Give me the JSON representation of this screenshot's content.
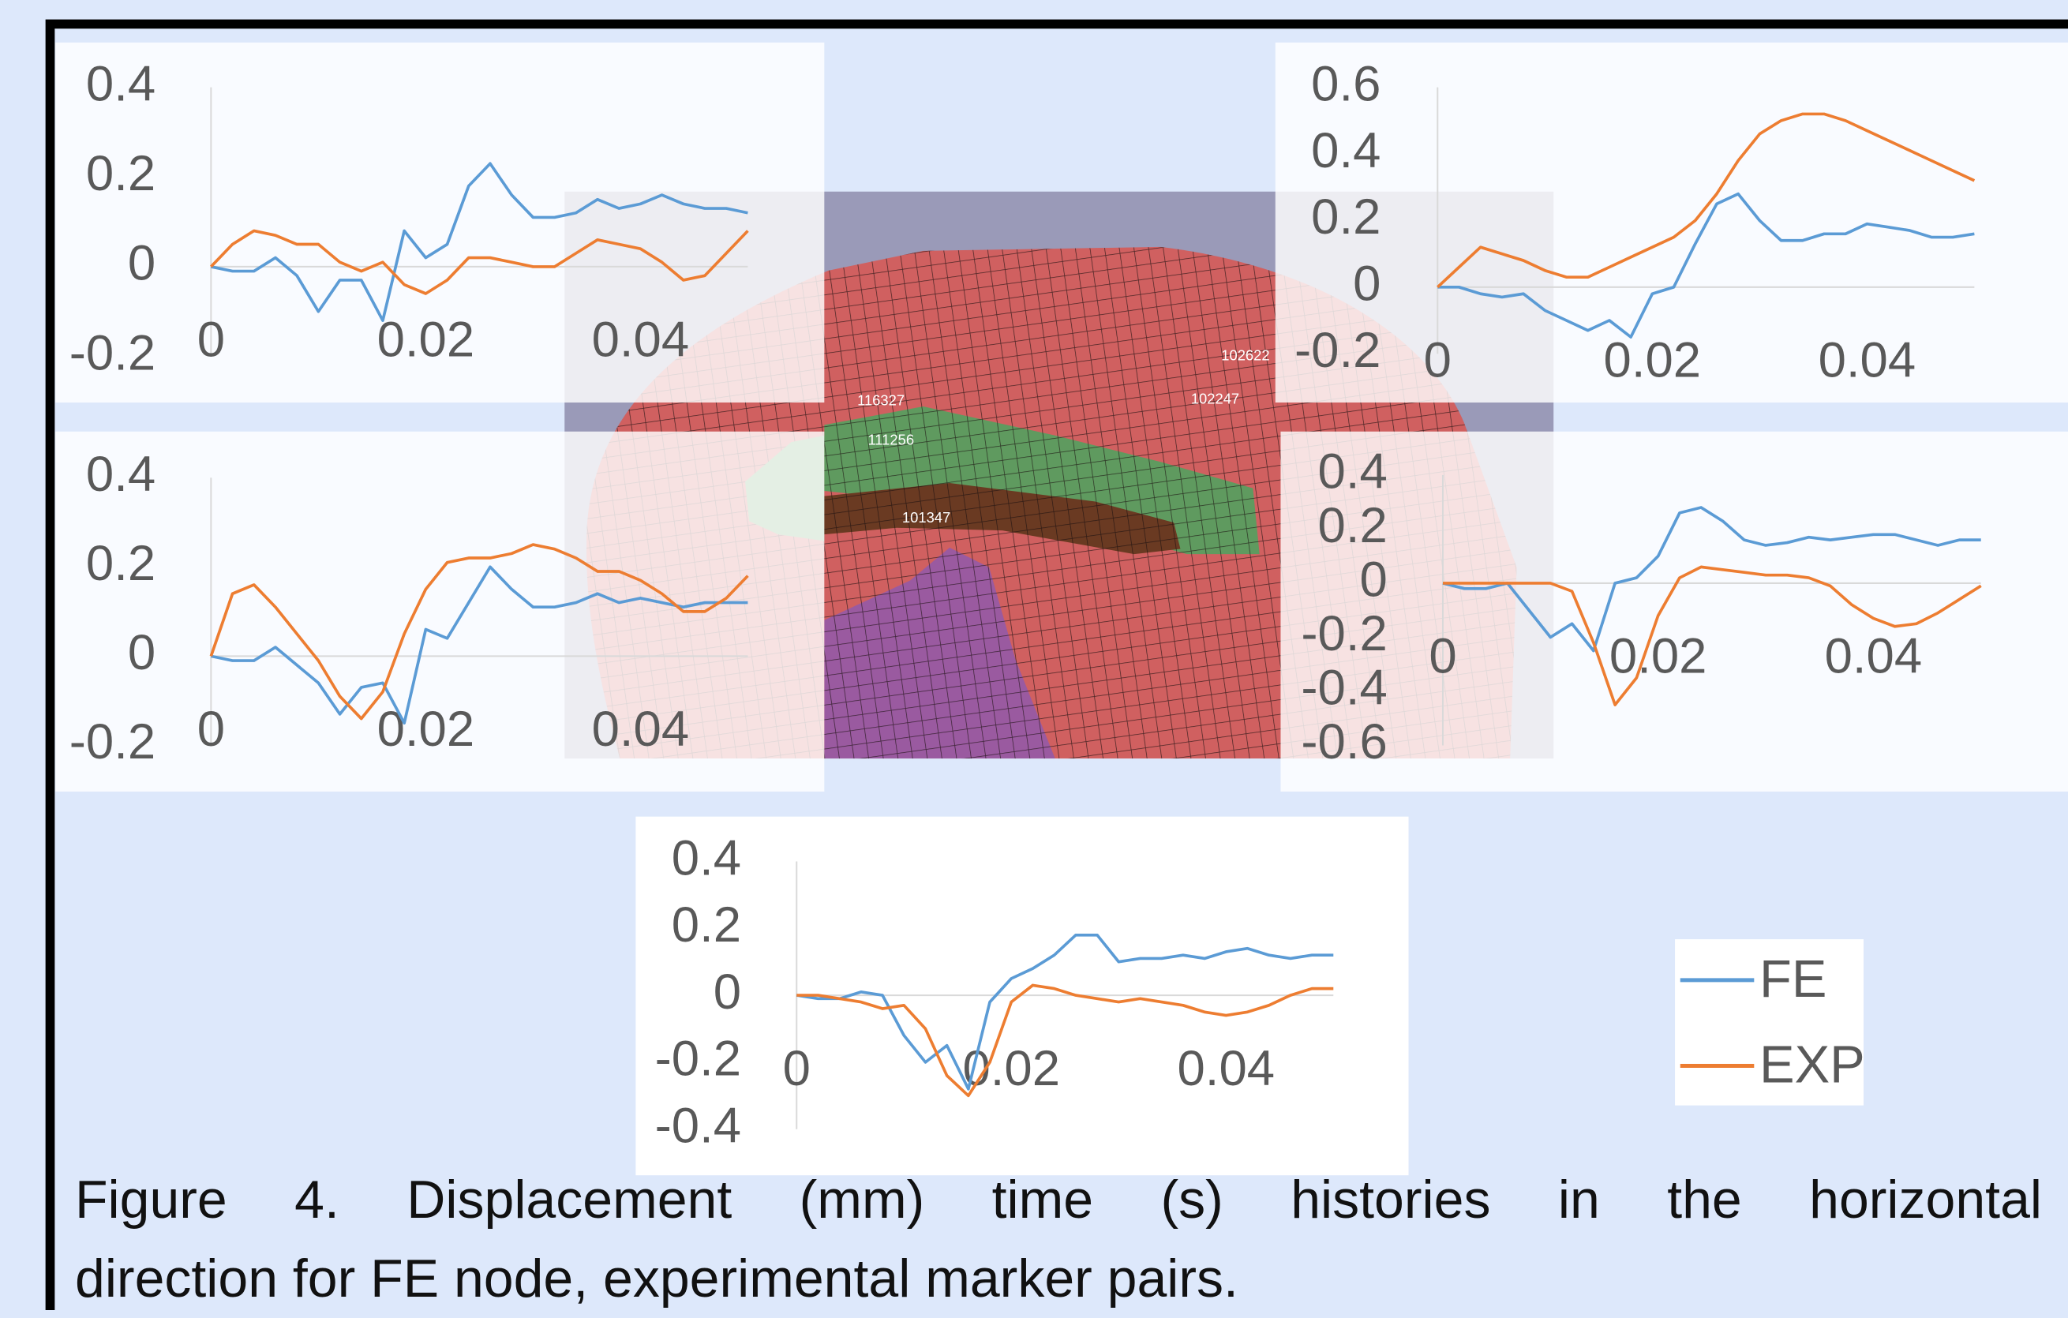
{
  "chart_data": [
    {
      "type": "line",
      "x": [
        0,
        0.002,
        0.004,
        0.006,
        0.008,
        0.01,
        0.012,
        0.014,
        0.016,
        0.018,
        0.02,
        0.022,
        0.024,
        0.026,
        0.028,
        0.03,
        0.032,
        0.034,
        0.036,
        0.038,
        0.04,
        0.042,
        0.044,
        0.046,
        0.048,
        0.05
      ],
      "series": [
        {
          "name": "FE",
          "color": "#5b9bd5",
          "values": [
            0,
            -0.01,
            -0.01,
            0.02,
            -0.02,
            -0.1,
            -0.03,
            -0.03,
            -0.12,
            0.08,
            0.02,
            0.05,
            0.18,
            0.23,
            0.16,
            0.11,
            0.11,
            0.12,
            0.15,
            0.13,
            0.14,
            0.16,
            0.14,
            0.13,
            0.13,
            0.12
          ]
        },
        {
          "name": "EXP",
          "color": "#ed7d31",
          "values": [
            0,
            0.05,
            0.08,
            0.07,
            0.05,
            0.05,
            0.01,
            -0.01,
            0.01,
            -0.04,
            -0.06,
            -0.03,
            0.02,
            0.02,
            0.01,
            0,
            0,
            0.03,
            0.06,
            0.05,
            0.04,
            0.01,
            -0.03,
            -0.02,
            0.03,
            0.08
          ]
        }
      ],
      "xlim": [
        0,
        0.05
      ],
      "xticks": [
        0,
        0.02,
        0.04
      ],
      "ylim": [
        -0.2,
        0.4
      ],
      "yticks": [
        -0.2,
        0,
        0.2,
        0.4
      ],
      "grid": false
    },
    {
      "type": "line",
      "x": [
        0,
        0.002,
        0.004,
        0.006,
        0.008,
        0.01,
        0.012,
        0.014,
        0.016,
        0.018,
        0.02,
        0.022,
        0.024,
        0.026,
        0.028,
        0.03,
        0.032,
        0.034,
        0.036,
        0.038,
        0.04,
        0.042,
        0.044,
        0.046,
        0.048,
        0.05
      ],
      "series": [
        {
          "name": "FE",
          "color": "#5b9bd5",
          "values": [
            0,
            0,
            -0.02,
            -0.03,
            -0.02,
            -0.07,
            -0.1,
            -0.13,
            -0.1,
            -0.15,
            -0.02,
            0,
            0.13,
            0.25,
            0.28,
            0.2,
            0.14,
            0.14,
            0.16,
            0.16,
            0.19,
            0.18,
            0.17,
            0.15,
            0.15,
            0.16
          ]
        },
        {
          "name": "EXP",
          "color": "#ed7d31",
          "values": [
            0,
            0.06,
            0.12,
            0.1,
            0.08,
            0.05,
            0.03,
            0.03,
            0.06,
            0.09,
            0.12,
            0.15,
            0.2,
            0.28,
            0.38,
            0.46,
            0.5,
            0.52,
            0.52,
            0.5,
            0.47,
            0.44,
            0.41,
            0.38,
            0.35,
            0.32
          ]
        }
      ],
      "xlim": [
        0,
        0.05
      ],
      "xticks": [
        0,
        0.02,
        0.04
      ],
      "ylim": [
        -0.2,
        0.6
      ],
      "yticks": [
        -0.2,
        0,
        0.2,
        0.4,
        0.6
      ],
      "grid": false
    },
    {
      "type": "line",
      "x": [
        0,
        0.002,
        0.004,
        0.006,
        0.008,
        0.01,
        0.012,
        0.014,
        0.016,
        0.018,
        0.02,
        0.022,
        0.024,
        0.026,
        0.028,
        0.03,
        0.032,
        0.034,
        0.036,
        0.038,
        0.04,
        0.042,
        0.044,
        0.046,
        0.048,
        0.05
      ],
      "series": [
        {
          "name": "FE",
          "color": "#5b9bd5",
          "values": [
            0,
            -0.01,
            -0.01,
            0.02,
            -0.02,
            -0.06,
            -0.13,
            -0.07,
            -0.06,
            -0.15,
            0.06,
            0.04,
            0.12,
            0.2,
            0.15,
            0.11,
            0.11,
            0.12,
            0.14,
            0.12,
            0.13,
            0.12,
            0.11,
            0.12,
            0.12,
            0.12
          ]
        },
        {
          "name": "EXP",
          "color": "#ed7d31",
          "values": [
            0,
            0.14,
            0.16,
            0.11,
            0.05,
            -0.01,
            -0.09,
            -0.14,
            -0.08,
            0.05,
            0.15,
            0.21,
            0.22,
            0.22,
            0.23,
            0.25,
            0.24,
            0.22,
            0.19,
            0.19,
            0.17,
            0.14,
            0.1,
            0.1,
            0.13,
            0.18
          ]
        }
      ],
      "xlim": [
        0,
        0.05
      ],
      "xticks": [
        0,
        0.02,
        0.04
      ],
      "ylim": [
        -0.2,
        0.4
      ],
      "yticks": [
        -0.2,
        0,
        0.2,
        0.4
      ],
      "grid": false
    },
    {
      "type": "line",
      "x": [
        0,
        0.002,
        0.004,
        0.006,
        0.008,
        0.01,
        0.012,
        0.014,
        0.016,
        0.018,
        0.02,
        0.022,
        0.024,
        0.026,
        0.028,
        0.03,
        0.032,
        0.034,
        0.036,
        0.038,
        0.04,
        0.042,
        0.044,
        0.046,
        0.048,
        0.05
      ],
      "series": [
        {
          "name": "FE",
          "color": "#5b9bd5",
          "values": [
            0,
            -0.02,
            -0.02,
            0,
            -0.1,
            -0.2,
            -0.15,
            -0.25,
            0,
            0.02,
            0.1,
            0.26,
            0.28,
            0.23,
            0.16,
            0.14,
            0.15,
            0.17,
            0.16,
            0.17,
            0.18,
            0.18,
            0.16,
            0.14,
            0.16,
            0.16
          ]
        },
        {
          "name": "EXP",
          "color": "#ed7d31",
          "values": [
            0,
            0,
            0,
            0,
            0,
            0,
            -0.03,
            -0.22,
            -0.45,
            -0.35,
            -0.12,
            0.02,
            0.06,
            0.05,
            0.04,
            0.03,
            0.03,
            0.02,
            -0.01,
            -0.08,
            -0.13,
            -0.16,
            -0.15,
            -0.11,
            -0.06,
            -0.01
          ]
        }
      ],
      "xlim": [
        0,
        0.05
      ],
      "xticks": [
        0,
        0.02,
        0.04
      ],
      "ylim": [
        -0.6,
        0.4
      ],
      "yticks": [
        -0.6,
        -0.4,
        -0.2,
        0,
        0.2,
        0.4
      ],
      "grid": false
    },
    {
      "type": "line",
      "x": [
        0,
        0.002,
        0.004,
        0.006,
        0.008,
        0.01,
        0.012,
        0.014,
        0.016,
        0.018,
        0.02,
        0.022,
        0.024,
        0.026,
        0.028,
        0.03,
        0.032,
        0.034,
        0.036,
        0.038,
        0.04,
        0.042,
        0.044,
        0.046,
        0.048,
        0.05
      ],
      "series": [
        {
          "name": "FE",
          "color": "#5b9bd5",
          "values": [
            0,
            -0.01,
            -0.01,
            0.01,
            0,
            -0.12,
            -0.2,
            -0.15,
            -0.28,
            -0.02,
            0.05,
            0.08,
            0.12,
            0.18,
            0.18,
            0.1,
            0.11,
            0.11,
            0.12,
            0.11,
            0.13,
            0.14,
            0.12,
            0.11,
            0.12,
            0.12
          ]
        },
        {
          "name": "EXP",
          "color": "#ed7d31",
          "values": [
            0,
            0,
            -0.01,
            -0.02,
            -0.04,
            -0.03,
            -0.1,
            -0.24,
            -0.3,
            -0.2,
            -0.02,
            0.03,
            0.02,
            0,
            -0.01,
            -0.02,
            -0.01,
            -0.02,
            -0.03,
            -0.05,
            -0.06,
            -0.05,
            -0.03,
            0,
            0.02,
            0.02
          ]
        }
      ],
      "xlim": [
        0,
        0.05
      ],
      "xticks": [
        0,
        0.02,
        0.04
      ],
      "ylim": [
        -0.4,
        0.4
      ],
      "yticks": [
        -0.4,
        -0.2,
        0,
        0.2,
        0.4
      ],
      "grid": false
    }
  ],
  "mesh": {
    "node_labels": [
      "116327",
      "111256",
      "101347",
      "102622",
      "102247"
    ]
  },
  "caption": [
    "Figure 4. Displacement (mm) time (s) histories in the horizontal",
    "direction for FE node, experimental marker pairs."
  ]
}
